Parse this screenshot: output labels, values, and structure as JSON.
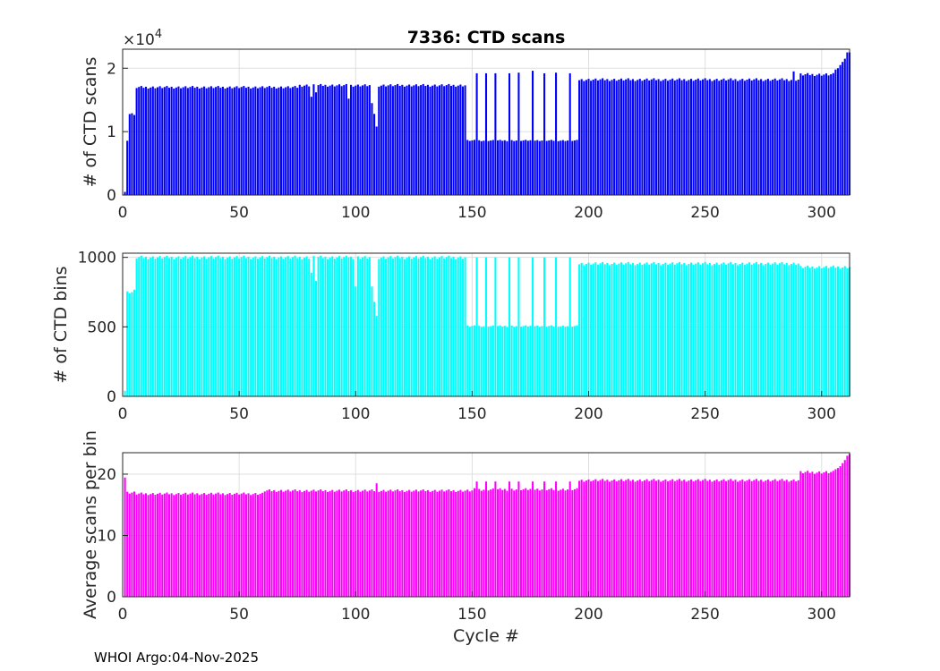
{
  "title": "7336: CTD scans",
  "footer": "WHOI Argo:04-Nov-2025",
  "xlabel": "Cycle #",
  "chart_data": [
    {
      "type": "bar",
      "color": "#0000ff",
      "ylabel": "# of CTD scans",
      "xlim": [
        0,
        312
      ],
      "ylim": [
        0,
        23000
      ],
      "exponent_label": "×10",
      "exponent_power": "4",
      "xticks": [
        0,
        50,
        100,
        150,
        200,
        250,
        300
      ],
      "xtick_labels": [
        "0",
        "50",
        "100",
        "150",
        "200",
        "250",
        "300"
      ],
      "yticks": [
        0,
        10000,
        20000
      ],
      "ytick_labels": [
        "0",
        "1",
        "2"
      ],
      "segments": [
        {
          "from": 1,
          "to": 1,
          "value": 500
        },
        {
          "from": 2,
          "to": 2,
          "value": 8500
        },
        {
          "from": 3,
          "to": 4,
          "value": 12900
        },
        {
          "from": 5,
          "to": 5,
          "value": 12500
        },
        {
          "from": 6,
          "to": 75,
          "value": 17000
        },
        {
          "from": 76,
          "to": 147,
          "value": 17300
        },
        {
          "from": 148,
          "to": 195,
          "value": 8600
        },
        {
          "from": 196,
          "to": 290,
          "value": 18200
        },
        {
          "from": 291,
          "to": 305,
          "value": 19000
        }
      ],
      "overrides": {
        "81": 15500,
        "83": 16200,
        "97": 15200,
        "107": 14500,
        "108": 12800,
        "109": 10800,
        "152": 19200,
        "156": 19200,
        "160": 19200,
        "166": 19200,
        "170": 19300,
        "176": 19600,
        "181": 19200,
        "186": 19300,
        "192": 19200,
        "288": 19500,
        "306": 19800,
        "307": 20000,
        "308": 20500,
        "309": 21000,
        "310": 21500,
        "311": 22500,
        "312": 22500
      }
    },
    {
      "type": "bar",
      "color": "#00ffff",
      "ylabel": "# of CTD bins",
      "xlim": [
        0,
        312
      ],
      "ylim": [
        0,
        1030
      ],
      "xticks": [
        0,
        50,
        100,
        150,
        200,
        250,
        300
      ],
      "xtick_labels": [
        "0",
        "50",
        "100",
        "150",
        "200",
        "250",
        "300"
      ],
      "yticks": [
        0,
        500,
        1000
      ],
      "ytick_labels": [
        "0",
        "500",
        "1000"
      ],
      "segments": [
        {
          "from": 1,
          "to": 1,
          "value": 40
        },
        {
          "from": 2,
          "to": 4,
          "value": 750
        },
        {
          "from": 5,
          "to": 5,
          "value": 760
        },
        {
          "from": 6,
          "to": 147,
          "value": 1000
        },
        {
          "from": 148,
          "to": 195,
          "value": 505
        },
        {
          "from": 196,
          "to": 290,
          "value": 955
        },
        {
          "from": 291,
          "to": 312,
          "value": 930
        }
      ],
      "overrides": {
        "81": 890,
        "83": 830,
        "97": 1000,
        "100": 790,
        "107": 790,
        "108": 680,
        "109": 580,
        "152": 1000,
        "156": 1000,
        "160": 1000,
        "166": 1000,
        "170": 1000,
        "176": 1000,
        "181": 1000,
        "186": 1000,
        "192": 1000
      }
    },
    {
      "type": "bar",
      "color": "#ff00ff",
      "ylabel": "Average scans per bin",
      "xlim": [
        0,
        312
      ],
      "ylim": [
        0,
        23.5
      ],
      "xticks": [
        0,
        50,
        100,
        150,
        200,
        250,
        300
      ],
      "xtick_labels": [
        "0",
        "50",
        "100",
        "150",
        "200",
        "250",
        "300"
      ],
      "yticks": [
        0,
        10,
        20
      ],
      "ytick_labels": [
        "0",
        "10",
        "20"
      ],
      "segments": [
        {
          "from": 1,
          "to": 1,
          "value": 19.5
        },
        {
          "from": 2,
          "to": 5,
          "value": 17.0
        },
        {
          "from": 6,
          "to": 60,
          "value": 16.8
        },
        {
          "from": 61,
          "to": 150,
          "value": 17.3
        },
        {
          "from": 151,
          "to": 195,
          "value": 17.5
        },
        {
          "from": 196,
          "to": 290,
          "value": 19.0
        },
        {
          "from": 291,
          "to": 305,
          "value": 20.3
        }
      ],
      "overrides": {
        "109": 18.5,
        "152": 18.8,
        "156": 18.8,
        "160": 18.8,
        "166": 18.8,
        "170": 18.8,
        "176": 18.8,
        "181": 18.8,
        "186": 18.8,
        "192": 18.8,
        "306": 20.8,
        "307": 21.0,
        "308": 21.3,
        "309": 21.8,
        "310": 22.3,
        "311": 23.0,
        "312": 23.3
      }
    }
  ]
}
